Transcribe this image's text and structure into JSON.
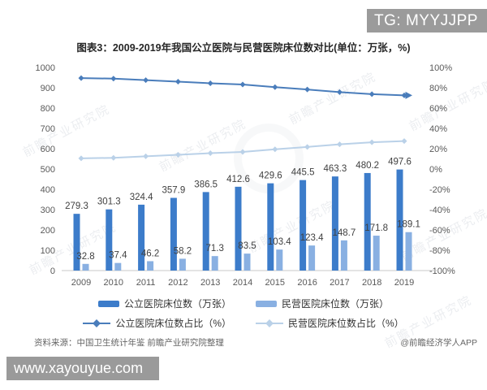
{
  "badge": {
    "text": "TG: MYYJJPP"
  },
  "title": "图表3：2009-2019年我国公立医院与民营医院床位数对比(单位：万张，%)",
  "watermark": {
    "text": "前瞻产业研究院"
  },
  "chart_data": {
    "type": "combo",
    "title": "图表3：2009-2019年我国公立医院与民营医院床位数对比(单位：万张，%)",
    "categories": [
      "2009",
      "2010",
      "2011",
      "2012",
      "2013",
      "2014",
      "2015",
      "2016",
      "2017",
      "2018",
      "2019"
    ],
    "left_axis": {
      "min": 0,
      "max": 1000,
      "step": 100
    },
    "right_axis": {
      "min": -100,
      "max": 100,
      "step": 20,
      "suffix": "%"
    },
    "grid": false,
    "legend_position": "bottom",
    "series": [
      {
        "name": "公立医院床位数（万张）",
        "type": "bar",
        "axis": "left",
        "color": "#3c7cca",
        "labels": true,
        "values": [
          279.3,
          301.3,
          324.4,
          357.9,
          386.5,
          412.6,
          429.6,
          445.5,
          463.3,
          480.2,
          497.6
        ]
      },
      {
        "name": "民营医院床位数（万张）",
        "type": "bar",
        "axis": "left",
        "color": "#89b0e2",
        "labels": true,
        "values": [
          32.8,
          37.4,
          46.2,
          58.2,
          71.3,
          83.5,
          103.4,
          123.4,
          148.7,
          171.8,
          189.1
        ]
      },
      {
        "name": "公立医院床位数占比（%）",
        "type": "line",
        "axis": "right",
        "color": "#4a7dbb",
        "labels": false,
        "end_arrow": true,
        "values": [
          89.5,
          89.0,
          87.5,
          86.0,
          84.4,
          83.2,
          80.6,
          78.3,
          75.7,
          73.7,
          72.5
        ]
      },
      {
        "name": "民营医院床位数占比（%）",
        "type": "line",
        "axis": "right",
        "color": "#bad1e8",
        "labels": false,
        "end_arrow": false,
        "values": [
          10.5,
          11.0,
          12.5,
          14.0,
          15.6,
          16.8,
          19.4,
          21.7,
          24.3,
          26.3,
          27.5
        ]
      }
    ]
  },
  "footer": {
    "source": "资料来源：中国卫生统计年鉴 前瞻产业研究院整理",
    "credit": "@前瞻经济学人APP"
  },
  "url_box": {
    "text": "www.xayouyue.com"
  }
}
